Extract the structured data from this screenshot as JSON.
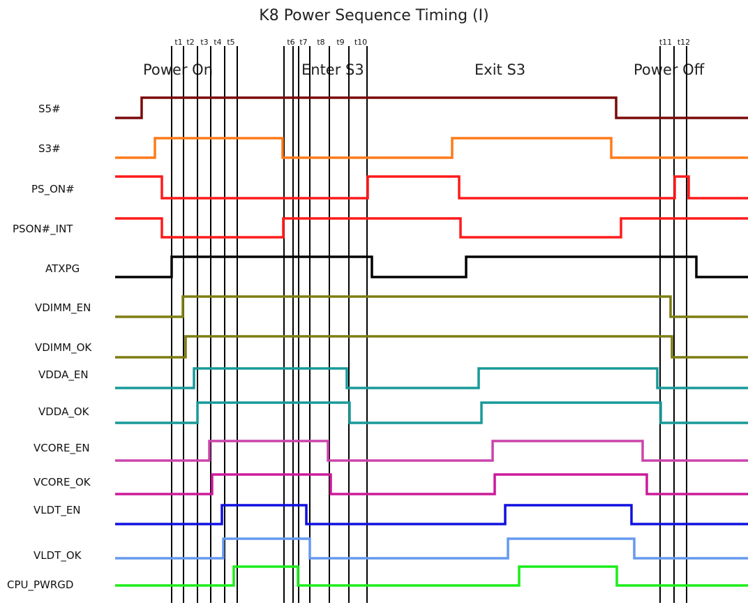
{
  "title": "K8 Power Sequence Timing (I)",
  "phases": [
    {
      "id": "power-on",
      "label": "Power On"
    },
    {
      "id": "enter-s3",
      "label": "Enter S3"
    },
    {
      "id": "exit-s3",
      "label": "Exit S3"
    },
    {
      "id": "power-off",
      "label": "Power Off"
    }
  ],
  "time_markers": [
    {
      "label": "t1"
    },
    {
      "label": "t2"
    },
    {
      "label": "t3"
    },
    {
      "label": "t4"
    },
    {
      "label": "t5"
    },
    {
      "label": "t6"
    },
    {
      "label": "t7"
    },
    {
      "label": "t8"
    },
    {
      "label": "t9"
    },
    {
      "label": "t10"
    },
    {
      "label": "t11"
    },
    {
      "label": "t12"
    }
  ],
  "signals": [
    {
      "name": "S5#",
      "color": "#7a0a0a"
    },
    {
      "name": "S3#",
      "color": "#ff7a1a"
    },
    {
      "name": "PS_ON#",
      "color": "#ff1a1a"
    },
    {
      "name": "PSON#_INT",
      "color": "#ff1a1a"
    },
    {
      "name": "ATXPG",
      "color": "#000000"
    },
    {
      "name": "VDIMM_EN",
      "color": "#7d7d12"
    },
    {
      "name": "VDIMM_OK",
      "color": "#7d7d12"
    },
    {
      "name": "VDDA_EN",
      "color": "#199999"
    },
    {
      "name": "VDDA_OK",
      "color": "#199999"
    },
    {
      "name": "VCORE_EN",
      "color": "#cc44aa"
    },
    {
      "name": "VCORE_OK",
      "color": "#cc1a99"
    },
    {
      "name": "VLDT_EN",
      "color": "#1010e0"
    },
    {
      "name": "VLDT_OK",
      "color": "#6699ee"
    },
    {
      "name": "CPU_PWRGD",
      "color": "#1aee1a"
    }
  ]
}
